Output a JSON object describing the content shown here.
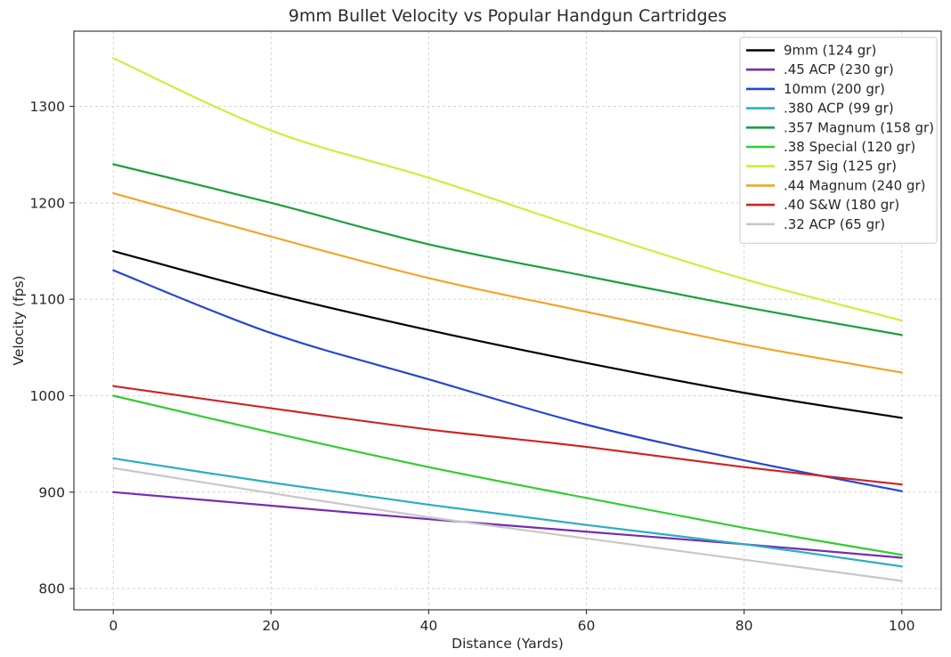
{
  "chart_data": {
    "type": "line",
    "title": "9mm Bullet Velocity vs Popular Handgun Cartridges",
    "xlabel": "Distance (Yards)",
    "ylabel": "Velocity (fps)",
    "x": [
      0,
      20,
      40,
      60,
      80,
      100
    ],
    "series": [
      {
        "name": "9mm (124 gr)",
        "color": "#000000",
        "values": [
          1150,
          1106,
          1068,
          1034,
          1003,
          977
        ]
      },
      {
        "name": ".45 ACP (230 gr)",
        "color": "#762cb2",
        "values": [
          900,
          886,
          872,
          859,
          846,
          832
        ]
      },
      {
        "name": "10mm (200 gr)",
        "color": "#2745d2",
        "values": [
          1130,
          1065,
          1017,
          970,
          933,
          901
        ]
      },
      {
        "name": ".380 ACP (99 gr)",
        "color": "#2cadc2",
        "values": [
          935,
          910,
          887,
          866,
          846,
          823
        ]
      },
      {
        "name": ".357 Magnum (158 gr)",
        "color": "#1d9e3d",
        "values": [
          1240,
          1200,
          1157,
          1124,
          1092,
          1063
        ]
      },
      {
        "name": ".38 Special (120 gr)",
        "color": "#32cd32",
        "values": [
          1000,
          962,
          926,
          894,
          863,
          835
        ]
      },
      {
        "name": ".357 Sig (125 gr)",
        "color": "#cdee3b",
        "values": [
          1350,
          1275,
          1226,
          1172,
          1121,
          1078
        ]
      },
      {
        "name": ".44 Magnum (240 gr)",
        "color": "#f0a52b",
        "values": [
          1210,
          1165,
          1122,
          1087,
          1053,
          1024
        ]
      },
      {
        "name": ".40 S&W (180 gr)",
        "color": "#cc2525",
        "values": [
          1010,
          987,
          965,
          947,
          926,
          908
        ]
      },
      {
        "name": ".32 ACP (65 gr)",
        "color": "#c8c8c8",
        "values": [
          925,
          899,
          874,
          852,
          830,
          808
        ]
      }
    ],
    "xticks": [
      0,
      20,
      40,
      60,
      80,
      100
    ],
    "yticks": [
      800,
      900,
      1000,
      1100,
      1200,
      1300
    ],
    "xlim": [
      -5,
      105
    ],
    "ylim": [
      778,
      1378
    ],
    "grid": true,
    "legend_position": "upper right",
    "style": {
      "grid_color": "#d4d4d4",
      "spine_color": "#3c3c3c",
      "text_color": "#262626",
      "background": "#ffffff",
      "line_width": 2.2
    }
  }
}
